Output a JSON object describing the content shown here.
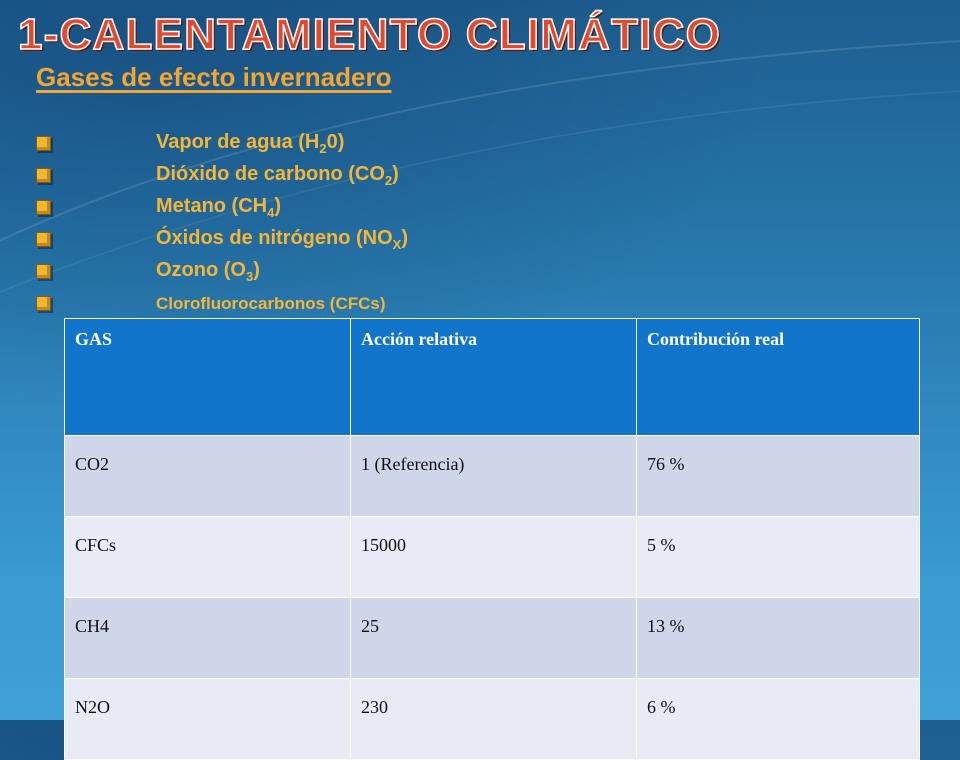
{
  "slide": {
    "title": "1-CALENTAMIENTO CLIMÁTICO",
    "subtitle": "Gases de efecto invernadero"
  },
  "gases": [
    {
      "text": "Vapor de agua (H",
      "sub": "2",
      "tail": "0)"
    },
    {
      "text": "Dióxido de carbono (CO",
      "sub": "2",
      "tail": ")"
    },
    {
      "text": "Metano (CH",
      "sub": "4",
      "tail": ")"
    },
    {
      "text": "Óxidos de nitrógeno (NO",
      "sub": "X",
      "tail": ")"
    },
    {
      "text": "Ozono (O",
      "sub": "3",
      "tail": ")"
    },
    {
      "text": "Clorofluorocarbonos (CFCs)",
      "sub": "",
      "tail": ""
    }
  ],
  "table": {
    "headers": [
      "GAS",
      "Acción relativa",
      "Contribución real"
    ],
    "rows": [
      [
        "CO2",
        "1 (Referencia)",
        "76 %"
      ],
      [
        "CFCs",
        "15000",
        "5 %"
      ],
      [
        "CH4",
        "25",
        "13 %"
      ],
      [
        "N2O",
        "230",
        "6 %"
      ]
    ]
  },
  "colors": {
    "title": "#e14a2e",
    "subtitle": "#f2a531",
    "list_text": "#f5b637",
    "table_header": "#1275cc",
    "row_odd": "#cfd6ea",
    "row_even": "#e8ebf5"
  }
}
